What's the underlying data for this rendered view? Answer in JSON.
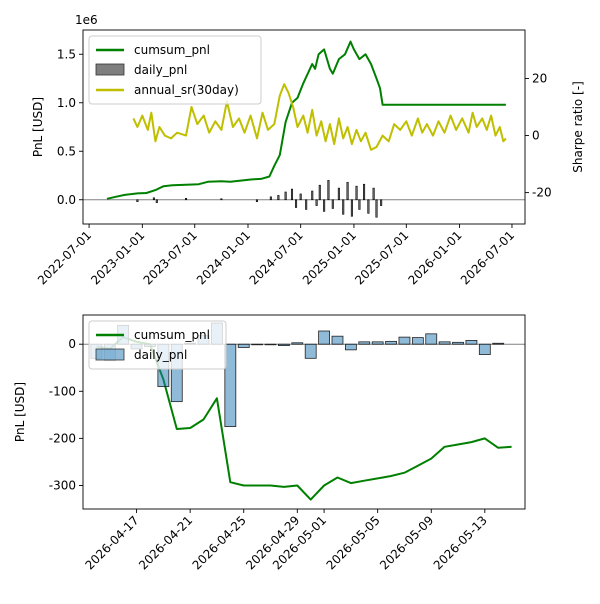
{
  "chart_data": [
    {
      "type": "line",
      "x_type": "date",
      "ylabel": "PnL [USD]",
      "y_offset_text": "1e6",
      "y2label": "Sharpe ratio [-]",
      "xlim": [
        "2022-06-10",
        "2026-08-15"
      ],
      "ylim": [
        -250000,
        1750000
      ],
      "y2lim": [
        -31,
        37
      ],
      "x_ticks": [
        "2022-07-01",
        "2023-01-01",
        "2023-07-01",
        "2024-01-01",
        "2024-07-01",
        "2025-01-01",
        "2025-07-01",
        "2026-01-01",
        "2026-07-01"
      ],
      "y_ticks": [
        0.0,
        0.5,
        1.0,
        1.5
      ],
      "y2_ticks": [
        -20,
        0,
        20
      ],
      "hline": 0,
      "grid": false,
      "legend_position": "top-left",
      "series": [
        {
          "name": "cumsum_pnl",
          "axis": "left",
          "color": "#008000",
          "points": [
            [
              "2022-09-01",
              10000
            ],
            [
              "2022-10-01",
              30000
            ],
            [
              "2022-11-01",
              50000
            ],
            [
              "2022-12-15",
              65000
            ],
            [
              "2023-01-15",
              70000
            ],
            [
              "2023-02-15",
              100000
            ],
            [
              "2023-03-15",
              140000
            ],
            [
              "2023-04-15",
              150000
            ],
            [
              "2023-06-01",
              155000
            ],
            [
              "2023-07-15",
              160000
            ],
            [
              "2023-08-15",
              185000
            ],
            [
              "2023-10-01",
              190000
            ],
            [
              "2023-11-01",
              185000
            ],
            [
              "2024-01-15",
              210000
            ],
            [
              "2024-02-15",
              215000
            ],
            [
              "2024-03-15",
              240000
            ],
            [
              "2024-04-01",
              350000
            ],
            [
              "2024-04-20",
              460000
            ],
            [
              "2024-05-10",
              800000
            ],
            [
              "2024-06-01",
              1000000
            ],
            [
              "2024-06-20",
              1050000
            ],
            [
              "2024-07-10",
              1200000
            ],
            [
              "2024-08-10",
              1400000
            ],
            [
              "2024-08-20",
              1350000
            ],
            [
              "2024-09-01",
              1500000
            ],
            [
              "2024-09-20",
              1550000
            ],
            [
              "2024-10-10",
              1350000
            ],
            [
              "2024-10-20",
              1300000
            ],
            [
              "2024-11-10",
              1450000
            ],
            [
              "2024-12-01",
              1500000
            ],
            [
              "2024-12-20",
              1630000
            ],
            [
              "2025-01-01",
              1550000
            ],
            [
              "2025-01-20",
              1450000
            ],
            [
              "2025-02-10",
              1500000
            ],
            [
              "2025-03-01",
              1400000
            ],
            [
              "2025-03-20",
              1250000
            ],
            [
              "2025-04-01",
              1150000
            ],
            [
              "2025-04-10",
              980000
            ],
            [
              "2026-06-10",
              980000
            ]
          ]
        },
        {
          "name": "daily_pnl",
          "axis": "left",
          "kind": "bar",
          "color": "#1f77b4",
          "points": [
            [
              "2022-12-15",
              -20000
            ],
            [
              "2023-02-10",
              20000
            ],
            [
              "2023-02-20",
              -30000
            ],
            [
              "2023-06-01",
              15000
            ],
            [
              "2023-10-01",
              10000
            ],
            [
              "2024-02-01",
              -20000
            ],
            [
              "2024-03-20",
              30000
            ],
            [
              "2024-04-15",
              45000
            ],
            [
              "2024-05-10",
              80000
            ],
            [
              "2024-06-01",
              110000
            ],
            [
              "2024-06-15",
              -80000
            ],
            [
              "2024-07-01",
              60000
            ],
            [
              "2024-07-20",
              -100000
            ],
            [
              "2024-08-10",
              90000
            ],
            [
              "2024-08-25",
              -60000
            ],
            [
              "2024-09-05",
              150000
            ],
            [
              "2024-09-20",
              -120000
            ],
            [
              "2024-10-05",
              200000
            ],
            [
              "2024-10-20",
              -90000
            ],
            [
              "2024-11-10",
              120000
            ],
            [
              "2024-11-25",
              -150000
            ],
            [
              "2024-12-10",
              180000
            ],
            [
              "2024-12-25",
              -170000
            ],
            [
              "2025-01-10",
              140000
            ],
            [
              "2025-01-20",
              -100000
            ],
            [
              "2025-02-05",
              160000
            ],
            [
              "2025-02-20",
              -140000
            ],
            [
              "2025-03-10",
              120000
            ],
            [
              "2025-03-20",
              -180000
            ],
            [
              "2025-04-05",
              -60000
            ]
          ]
        },
        {
          "name": "annual_sr(30day)",
          "axis": "right",
          "color": "#bfbf00",
          "points": [
            [
              "2022-12-01",
              6
            ],
            [
              "2022-12-15",
              3
            ],
            [
              "2023-01-01",
              7
            ],
            [
              "2023-01-20",
              2
            ],
            [
              "2023-02-01",
              8
            ],
            [
              "2023-02-15",
              -2
            ],
            [
              "2023-03-01",
              3
            ],
            [
              "2023-03-20",
              0
            ],
            [
              "2023-04-10",
              -1
            ],
            [
              "2023-05-01",
              1
            ],
            [
              "2023-06-01",
              0
            ],
            [
              "2023-06-20",
              10
            ],
            [
              "2023-07-10",
              4
            ],
            [
              "2023-08-01",
              7
            ],
            [
              "2023-08-20",
              1
            ],
            [
              "2023-09-10",
              5
            ],
            [
              "2023-10-01",
              2
            ],
            [
              "2023-10-20",
              12
            ],
            [
              "2023-11-10",
              3
            ],
            [
              "2023-12-01",
              6
            ],
            [
              "2023-12-20",
              1
            ],
            [
              "2024-01-10",
              7
            ],
            [
              "2024-02-01",
              -1
            ],
            [
              "2024-02-20",
              8
            ],
            [
              "2024-03-10",
              2
            ],
            [
              "2024-04-01",
              4
            ],
            [
              "2024-04-20",
              14
            ],
            [
              "2024-05-05",
              18
            ],
            [
              "2024-05-20",
              15
            ],
            [
              "2024-06-05",
              10
            ],
            [
              "2024-06-20",
              3
            ],
            [
              "2024-07-10",
              7
            ],
            [
              "2024-07-25",
              1
            ],
            [
              "2024-08-10",
              9
            ],
            [
              "2024-08-25",
              0
            ],
            [
              "2024-09-10",
              5
            ],
            [
              "2024-09-25",
              -2
            ],
            [
              "2024-10-10",
              4
            ],
            [
              "2024-10-25",
              -3
            ],
            [
              "2024-11-10",
              6
            ],
            [
              "2024-11-25",
              -1
            ],
            [
              "2024-12-10",
              3
            ],
            [
              "2024-12-25",
              -3
            ],
            [
              "2025-01-10",
              2
            ],
            [
              "2025-01-25",
              -2
            ],
            [
              "2025-02-10",
              1
            ],
            [
              "2025-03-01",
              -5
            ],
            [
              "2025-03-20",
              -4
            ],
            [
              "2025-04-10",
              0
            ],
            [
              "2025-05-01",
              -2
            ],
            [
              "2025-05-20",
              4
            ],
            [
              "2025-06-10",
              2
            ],
            [
              "2025-07-01",
              5
            ],
            [
              "2025-07-20",
              0
            ],
            [
              "2025-08-10",
              6
            ],
            [
              "2025-08-25",
              1
            ],
            [
              "2025-09-10",
              4
            ],
            [
              "2025-10-01",
              0
            ],
            [
              "2025-10-20",
              5
            ],
            [
              "2025-11-10",
              1
            ],
            [
              "2025-12-01",
              7
            ],
            [
              "2025-12-20",
              2
            ],
            [
              "2026-01-10",
              6
            ],
            [
              "2026-02-01",
              1
            ],
            [
              "2026-02-15",
              8
            ],
            [
              "2026-03-01",
              3
            ],
            [
              "2026-03-20",
              6
            ],
            [
              "2026-04-05",
              2
            ],
            [
              "2026-04-20",
              7
            ],
            [
              "2026-05-05",
              0
            ],
            [
              "2026-05-20",
              3
            ],
            [
              "2026-06-01",
              -2
            ],
            [
              "2026-06-10",
              -1
            ]
          ]
        }
      ]
    },
    {
      "type": "line",
      "x_type": "date",
      "ylabel": "PnL [USD]",
      "xlim": [
        "2026-04-13",
        "2026-05-16"
      ],
      "ylim": [
        -350,
        62
      ],
      "x_ticks": [
        "2026-04-17",
        "2026-04-21",
        "2026-04-25",
        "2026-04-29",
        "2026-05-01",
        "2026-05-05",
        "2026-05-09",
        "2026-05-13"
      ],
      "y_ticks": [
        -300,
        -200,
        -100,
        0
      ],
      "hline": 0,
      "grid": false,
      "legend_position": "top-left",
      "series": [
        {
          "name": "cumsum_pnl",
          "color": "#008000",
          "points": [
            [
              "2026-04-14",
              -5
            ],
            [
              "2026-04-15",
              -10
            ],
            [
              "2026-04-16",
              15
            ],
            [
              "2026-04-17",
              5
            ],
            [
              "2026-04-18",
              0
            ],
            [
              "2026-04-19",
              -75
            ],
            [
              "2026-04-20",
              -180
            ],
            [
              "2026-04-21",
              -178
            ],
            [
              "2026-04-22",
              -160
            ],
            [
              "2026-04-23",
              -115
            ],
            [
              "2026-04-24",
              -293
            ],
            [
              "2026-04-25",
              -300
            ],
            [
              "2026-04-26",
              -300
            ],
            [
              "2026-04-27",
              -300
            ],
            [
              "2026-04-28",
              -303
            ],
            [
              "2026-04-29",
              -300
            ],
            [
              "2026-04-30",
              -330
            ],
            [
              "2026-05-01",
              -300
            ],
            [
              "2026-05-02",
              -283
            ],
            [
              "2026-05-03",
              -295
            ],
            [
              "2026-05-04",
              -290
            ],
            [
              "2026-05-05",
              -285
            ],
            [
              "2026-05-06",
              -280
            ],
            [
              "2026-05-07",
              -273
            ],
            [
              "2026-05-08",
              -258
            ],
            [
              "2026-05-09",
              -243
            ],
            [
              "2026-05-10",
              -218
            ],
            [
              "2026-05-11",
              -213
            ],
            [
              "2026-05-12",
              -208
            ],
            [
              "2026-05-13",
              -200
            ],
            [
              "2026-05-14",
              -220
            ],
            [
              "2026-05-15",
              -218
            ]
          ]
        },
        {
          "name": "daily_pnl",
          "kind": "bar",
          "color": "#1f77b4",
          "points": [
            [
              "2026-04-14",
              -30
            ],
            [
              "2026-04-15",
              -35
            ],
            [
              "2026-04-16",
              40
            ],
            [
              "2026-04-17",
              -10
            ],
            [
              "2026-04-18",
              -5
            ],
            [
              "2026-04-19",
              -90
            ],
            [
              "2026-04-20",
              -122
            ],
            [
              "2026-04-21",
              2
            ],
            [
              "2026-04-22",
              18
            ],
            [
              "2026-04-23",
              45
            ],
            [
              "2026-04-24",
              -175
            ],
            [
              "2026-04-25",
              -7
            ],
            [
              "2026-04-26",
              -1
            ],
            [
              "2026-04-27",
              -1
            ],
            [
              "2026-04-28",
              -3
            ],
            [
              "2026-04-29",
              3
            ],
            [
              "2026-04-30",
              -30
            ],
            [
              "2026-05-01",
              28
            ],
            [
              "2026-05-02",
              17
            ],
            [
              "2026-05-03",
              -12
            ],
            [
              "2026-05-04",
              5
            ],
            [
              "2026-05-05",
              5
            ],
            [
              "2026-05-06",
              6
            ],
            [
              "2026-05-07",
              15
            ],
            [
              "2026-05-08",
              14
            ],
            [
              "2026-05-09",
              22
            ],
            [
              "2026-05-10",
              5
            ],
            [
              "2026-05-11",
              4
            ],
            [
              "2026-05-12",
              8
            ],
            [
              "2026-05-13",
              -22
            ],
            [
              "2026-05-14",
              2
            ]
          ]
        }
      ]
    }
  ]
}
